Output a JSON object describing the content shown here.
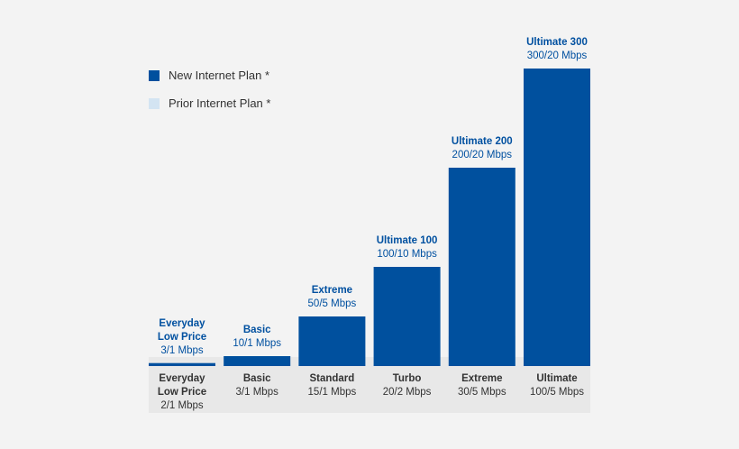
{
  "legend": {
    "new_label": "New Internet Plan *",
    "prior_label": "Prior Internet Plan *"
  },
  "colors": {
    "new": "#00509e",
    "prior": "#d3e4f2",
    "panel": "#e8e8e8"
  },
  "chart_data": {
    "type": "bar",
    "categories": [
      "Everyday Low Price",
      "Basic",
      "Standard",
      "Turbo",
      "Extreme",
      "Ultimate"
    ],
    "category_speeds": [
      "2/1 Mbps",
      "3/1 Mbps",
      "15/1 Mbps",
      "20/2 Mbps",
      "30/5 Mbps",
      "100/5 Mbps"
    ],
    "series": [
      {
        "name": "New Internet Plan *",
        "values": [
          3,
          10,
          50,
          100,
          200,
          300
        ],
        "labels": [
          "Everyday Low Price",
          "Basic",
          "Extreme",
          "Ultimate 100",
          "Ultimate 200",
          "Ultimate 300"
        ],
        "speeds": [
          "3/1 Mbps",
          "10/1 Mbps",
          "50/5 Mbps",
          "100/10 Mbps",
          "200/20 Mbps",
          "300/20 Mbps"
        ]
      },
      {
        "name": "Prior Internet Plan *",
        "values": [
          2,
          3,
          15,
          20,
          30,
          100
        ]
      }
    ],
    "legend": "top-left",
    "grid": false,
    "ylim": [
      0,
      300
    ]
  }
}
